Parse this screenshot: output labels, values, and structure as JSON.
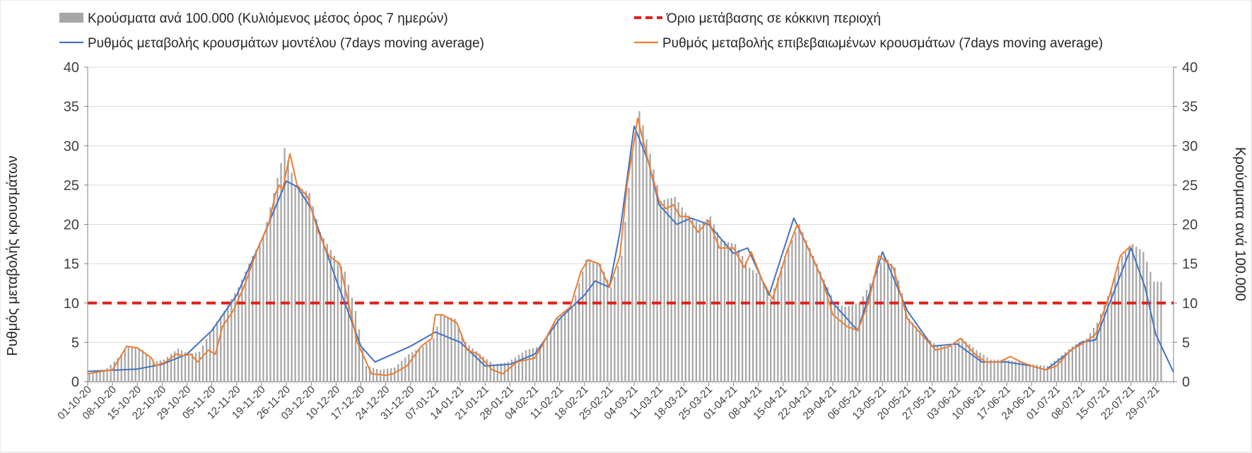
{
  "chart_data": {
    "type": "bar",
    "title": "",
    "ylabel_left": "Ρυθμός μεταβολής κρουσμάτων",
    "ylabel_right": "Κρούσματα ανά 100.000",
    "ylim_left": [
      0,
      40
    ],
    "ylim_right": [
      0,
      40
    ],
    "y_ticks": [
      0,
      5,
      10,
      15,
      20,
      25,
      30,
      35,
      40
    ],
    "grid": true,
    "legend_position": "top",
    "x_start": "2020-10-01",
    "x_end": "2021-08-03",
    "x_tick_labels": [
      "01-10-20",
      "08-10-20",
      "15-10-20",
      "22-10-20",
      "29-10-20",
      "05-11-20",
      "12-11-20",
      "19-11-20",
      "26-11-20",
      "03-12-20",
      "10-12-20",
      "17-12-20",
      "24-12-20",
      "31-12-20",
      "07-01-21",
      "14-01-21",
      "21-01-21",
      "28-01-21",
      "04-02-21",
      "11-02-21",
      "18-02-21",
      "25-02-21",
      "04-03-21",
      "11-03-21",
      "18-03-21",
      "25-03-21",
      "01-04-21",
      "08-04-21",
      "15-04-21",
      "22-04-21",
      "29-04-21",
      "06-05-21",
      "13-05-21",
      "20-05-21",
      "27-05-21",
      "03-06-21",
      "10-06-21",
      "17-06-21",
      "24-06-21",
      "01-07-21",
      "08-07-21",
      "15-07-21",
      "22-07-21",
      "29-07-21"
    ],
    "series": [
      {
        "name": "Κρούσματα ανά 100.000 (Κυλιόμενος μέσος όρος 7 ημερών)",
        "kind": "bar",
        "color": "#a6a6a6",
        "points": [
          [
            "2020-10-01",
            1.0
          ],
          [
            "2020-10-05",
            1.3
          ],
          [
            "2020-10-09",
            3.0
          ],
          [
            "2020-10-12",
            4.5
          ],
          [
            "2020-10-16",
            4.0
          ],
          [
            "2020-10-19",
            2.5
          ],
          [
            "2020-10-22",
            2.8
          ],
          [
            "2020-10-26",
            4.2
          ],
          [
            "2020-10-29",
            3.5
          ],
          [
            "2020-11-01",
            3.8
          ],
          [
            "2020-11-05",
            7.0
          ],
          [
            "2020-11-08",
            9.0
          ],
          [
            "2020-11-12",
            12.0
          ],
          [
            "2020-11-16",
            16.0
          ],
          [
            "2020-11-19",
            18.5
          ],
          [
            "2020-11-22",
            24.0
          ],
          [
            "2020-11-25",
            29.7
          ],
          [
            "2020-11-28",
            25.0
          ],
          [
            "2020-12-02",
            24.0
          ],
          [
            "2020-12-05",
            19.0
          ],
          [
            "2020-12-09",
            16.0
          ],
          [
            "2020-12-12",
            14.0
          ],
          [
            "2020-12-15",
            9.0
          ],
          [
            "2020-12-18",
            2.0
          ],
          [
            "2020-12-22",
            1.5
          ],
          [
            "2020-12-26",
            1.8
          ],
          [
            "2020-12-30",
            3.5
          ],
          [
            "2021-01-03",
            4.5
          ],
          [
            "2021-01-06",
            5.5
          ],
          [
            "2021-01-08",
            8.5
          ],
          [
            "2021-01-12",
            8.0
          ],
          [
            "2021-01-15",
            5.0
          ],
          [
            "2021-01-19",
            3.5
          ],
          [
            "2021-01-23",
            2.2
          ],
          [
            "2021-01-27",
            2.5
          ],
          [
            "2021-02-01",
            4.0
          ],
          [
            "2021-02-05",
            4.5
          ],
          [
            "2021-02-10",
            8.0
          ],
          [
            "2021-02-14",
            9.5
          ],
          [
            "2021-02-18",
            15.5
          ],
          [
            "2021-02-22",
            15.0
          ],
          [
            "2021-02-25",
            12.0
          ],
          [
            "2021-02-28",
            16.0
          ],
          [
            "2021-03-03",
            29.0
          ],
          [
            "2021-03-05",
            34.4
          ],
          [
            "2021-03-08",
            29.0
          ],
          [
            "2021-03-11",
            23.0
          ],
          [
            "2021-03-15",
            23.5
          ],
          [
            "2021-03-18",
            21.5
          ],
          [
            "2021-03-22",
            20.0
          ],
          [
            "2021-03-25",
            21.0
          ],
          [
            "2021-03-28",
            18.0
          ],
          [
            "2021-04-01",
            17.5
          ],
          [
            "2021-04-05",
            14.5
          ],
          [
            "2021-04-08",
            13.5
          ],
          [
            "2021-04-11",
            10.5
          ],
          [
            "2021-04-15",
            16.0
          ],
          [
            "2021-04-19",
            20.0
          ],
          [
            "2021-04-22",
            17.0
          ],
          [
            "2021-04-25",
            14.0
          ],
          [
            "2021-04-29",
            10.0
          ],
          [
            "2021-05-02",
            9.5
          ],
          [
            "2021-05-06",
            10.0
          ],
          [
            "2021-05-09",
            12.5
          ],
          [
            "2021-05-13",
            16.0
          ],
          [
            "2021-05-16",
            14.5
          ],
          [
            "2021-05-20",
            8.0
          ],
          [
            "2021-05-24",
            6.0
          ],
          [
            "2021-05-28",
            4.5
          ],
          [
            "2021-06-01",
            4.5
          ],
          [
            "2021-06-04",
            5.5
          ],
          [
            "2021-06-08",
            4.0
          ],
          [
            "2021-06-12",
            2.8
          ],
          [
            "2021-06-16",
            2.8
          ],
          [
            "2021-06-20",
            2.5
          ],
          [
            "2021-06-24",
            2.2
          ],
          [
            "2021-06-28",
            2.0
          ],
          [
            "2021-07-01",
            3.0
          ],
          [
            "2021-07-05",
            4.5
          ],
          [
            "2021-07-09",
            5.5
          ],
          [
            "2021-07-12",
            7.5
          ],
          [
            "2021-07-16",
            12.0
          ],
          [
            "2021-07-19",
            16.0
          ],
          [
            "2021-07-22",
            17.5
          ],
          [
            "2021-07-25",
            16.5
          ],
          [
            "2021-07-28",
            12.7
          ],
          [
            "2021-07-30",
            12.7
          ]
        ]
      },
      {
        "name": "Ρυθμός μεταβολής κρουσμάτων μοντέλου (7days moving average)",
        "kind": "line",
        "color": "#4472c4",
        "points": [
          [
            "2020-10-01",
            1.3
          ],
          [
            "2020-10-15",
            1.6
          ],
          [
            "2020-10-22",
            2.2
          ],
          [
            "2020-10-29",
            3.5
          ],
          [
            "2020-11-05",
            6.5
          ],
          [
            "2020-11-12",
            11.0
          ],
          [
            "2020-11-19",
            18.0
          ],
          [
            "2020-11-26",
            25.5
          ],
          [
            "2020-11-29",
            24.8
          ],
          [
            "2020-12-03",
            22.0
          ],
          [
            "2020-12-10",
            13.0
          ],
          [
            "2020-12-17",
            4.5
          ],
          [
            "2020-12-21",
            2.5
          ],
          [
            "2020-12-31",
            4.5
          ],
          [
            "2021-01-07",
            6.3
          ],
          [
            "2021-01-14",
            5.0
          ],
          [
            "2021-01-21",
            2.0
          ],
          [
            "2021-01-28",
            2.2
          ],
          [
            "2021-02-04",
            3.5
          ],
          [
            "2021-02-11",
            8.0
          ],
          [
            "2021-02-18",
            11.0
          ],
          [
            "2021-02-21",
            12.8
          ],
          [
            "2021-02-25",
            12.0
          ],
          [
            "2021-02-28",
            19.0
          ],
          [
            "2021-03-04",
            32.5
          ],
          [
            "2021-03-08",
            28.0
          ],
          [
            "2021-03-11",
            22.5
          ],
          [
            "2021-03-16",
            20.0
          ],
          [
            "2021-03-20",
            20.8
          ],
          [
            "2021-03-25",
            20.0
          ],
          [
            "2021-04-01",
            16.3
          ],
          [
            "2021-04-05",
            17.0
          ],
          [
            "2021-04-11",
            11.0
          ],
          [
            "2021-04-18",
            20.8
          ],
          [
            "2021-04-22",
            17.0
          ],
          [
            "2021-04-29",
            10.0
          ],
          [
            "2021-05-06",
            6.5
          ],
          [
            "2021-05-13",
            16.5
          ],
          [
            "2021-05-20",
            9.0
          ],
          [
            "2021-05-27",
            4.5
          ],
          [
            "2021-06-03",
            4.8
          ],
          [
            "2021-06-10",
            2.5
          ],
          [
            "2021-06-17",
            2.5
          ],
          [
            "2021-06-24",
            2.0
          ],
          [
            "2021-06-28",
            1.5
          ],
          [
            "2021-07-01",
            2.5
          ],
          [
            "2021-07-08",
            5.0
          ],
          [
            "2021-07-12",
            5.3
          ],
          [
            "2021-07-16",
            10.0
          ],
          [
            "2021-07-22",
            17.0
          ],
          [
            "2021-07-26",
            12.0
          ],
          [
            "2021-07-29",
            6.0
          ],
          [
            "2021-08-03",
            1.2
          ]
        ]
      },
      {
        "name": "Ρυθμός μεταβολής επιβεβαιωμένων κρουσμάτων (7days moving average)",
        "kind": "line",
        "color": "#ed7d31",
        "points": [
          [
            "2020-10-01",
            1.0
          ],
          [
            "2020-10-05",
            1.3
          ],
          [
            "2020-10-08",
            1.5
          ],
          [
            "2020-10-10",
            3.0
          ],
          [
            "2020-10-12",
            4.5
          ],
          [
            "2020-10-15",
            4.3
          ],
          [
            "2020-10-19",
            3.0
          ],
          [
            "2020-10-20",
            2.0
          ],
          [
            "2020-10-23",
            2.5
          ],
          [
            "2020-10-26",
            3.5
          ],
          [
            "2020-10-28",
            3.3
          ],
          [
            "2020-10-30",
            3.5
          ],
          [
            "2020-11-01",
            2.5
          ],
          [
            "2020-11-04",
            4.0
          ],
          [
            "2020-11-06",
            3.5
          ],
          [
            "2020-11-08",
            7.0
          ],
          [
            "2020-11-11",
            9.0
          ],
          [
            "2020-11-14",
            12.0
          ],
          [
            "2020-11-18",
            17.0
          ],
          [
            "2020-11-21",
            20.0
          ],
          [
            "2020-11-23",
            24.0
          ],
          [
            "2020-11-24",
            25.0
          ],
          [
            "2020-11-25",
            24.5
          ],
          [
            "2020-11-27",
            29.0
          ],
          [
            "2020-11-29",
            25.0
          ],
          [
            "2020-12-02",
            23.5
          ],
          [
            "2020-12-05",
            19.0
          ],
          [
            "2020-12-08",
            16.0
          ],
          [
            "2020-12-11",
            15.0
          ],
          [
            "2020-12-13",
            11.0
          ],
          [
            "2020-12-16",
            5.0
          ],
          [
            "2020-12-20",
            1.0
          ],
          [
            "2020-12-24",
            0.8
          ],
          [
            "2020-12-26",
            1.0
          ],
          [
            "2020-12-30",
            2.0
          ],
          [
            "2021-01-03",
            4.5
          ],
          [
            "2021-01-06",
            5.5
          ],
          [
            "2021-01-07",
            8.5
          ],
          [
            "2021-01-09",
            8.5
          ],
          [
            "2021-01-13",
            7.5
          ],
          [
            "2021-01-16",
            4.0
          ],
          [
            "2021-01-19",
            3.5
          ],
          [
            "2021-01-23",
            1.5
          ],
          [
            "2021-01-26",
            1.0
          ],
          [
            "2021-01-30",
            2.5
          ],
          [
            "2021-02-04",
            3.0
          ],
          [
            "2021-02-06",
            4.5
          ],
          [
            "2021-02-10",
            8.0
          ],
          [
            "2021-02-14",
            9.5
          ],
          [
            "2021-02-17",
            14.0
          ],
          [
            "2021-02-19",
            15.5
          ],
          [
            "2021-02-22",
            15.0
          ],
          [
            "2021-02-25",
            12.0
          ],
          [
            "2021-02-28",
            16.0
          ],
          [
            "2021-03-02",
            25.0
          ],
          [
            "2021-03-05",
            33.5
          ],
          [
            "2021-03-08",
            28.0
          ],
          [
            "2021-03-11",
            23.0
          ],
          [
            "2021-03-13",
            22.0
          ],
          [
            "2021-03-15",
            22.5
          ],
          [
            "2021-03-17",
            21.0
          ],
          [
            "2021-03-19",
            21.0
          ],
          [
            "2021-03-22",
            19.0
          ],
          [
            "2021-03-25",
            20.5
          ],
          [
            "2021-03-28",
            17.0
          ],
          [
            "2021-04-01",
            17.0
          ],
          [
            "2021-04-04",
            14.5
          ],
          [
            "2021-04-06",
            16.5
          ],
          [
            "2021-04-09",
            13.0
          ],
          [
            "2021-04-12",
            10.5
          ],
          [
            "2021-04-16",
            16.5
          ],
          [
            "2021-04-19",
            20.0
          ],
          [
            "2021-04-22",
            17.0
          ],
          [
            "2021-04-26",
            13.0
          ],
          [
            "2021-04-29",
            8.5
          ],
          [
            "2021-05-03",
            7.0
          ],
          [
            "2021-05-06",
            6.5
          ],
          [
            "2021-05-09",
            10.0
          ],
          [
            "2021-05-12",
            16.0
          ],
          [
            "2021-05-16",
            14.5
          ],
          [
            "2021-05-20",
            8.0
          ],
          [
            "2021-05-24",
            6.0
          ],
          [
            "2021-05-28",
            4.0
          ],
          [
            "2021-06-01",
            4.5
          ],
          [
            "2021-06-04",
            5.5
          ],
          [
            "2021-06-08",
            3.5
          ],
          [
            "2021-06-11",
            2.5
          ],
          [
            "2021-06-15",
            2.5
          ],
          [
            "2021-06-18",
            3.2
          ],
          [
            "2021-06-21",
            2.5
          ],
          [
            "2021-06-24",
            2.0
          ],
          [
            "2021-06-28",
            1.5
          ],
          [
            "2021-07-01",
            2.0
          ],
          [
            "2021-07-05",
            4.0
          ],
          [
            "2021-07-09",
            5.0
          ],
          [
            "2021-07-12",
            6.0
          ],
          [
            "2021-07-16",
            11.0
          ],
          [
            "2021-07-19",
            16.0
          ],
          [
            "2021-07-22",
            17.3
          ]
        ]
      },
      {
        "name": "Όριο μετάβασης σε κόκκινη περιοχή",
        "kind": "dashed-line",
        "color": "#e0201b",
        "value": 10
      }
    ]
  }
}
